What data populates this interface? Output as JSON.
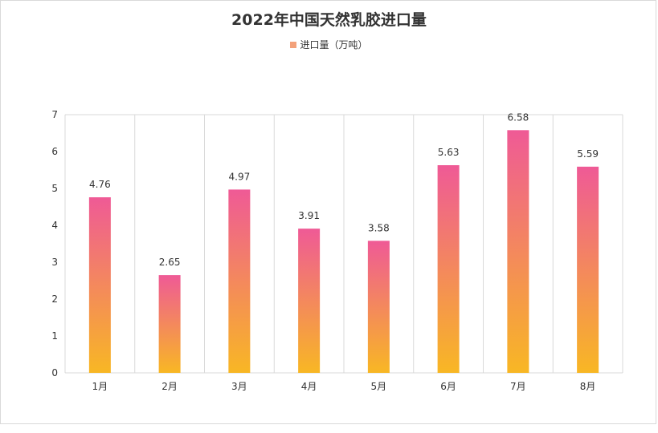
{
  "chart_data": {
    "type": "bar",
    "title": "2022年中国天然乳胶进口量",
    "xlabel": "",
    "ylabel": "",
    "categories": [
      "1月",
      "2月",
      "3月",
      "4月",
      "5月",
      "6月",
      "7月",
      "8月"
    ],
    "series": [
      {
        "name": "进口量（万吨）",
        "values": [
          4.76,
          2.65,
          4.97,
          3.91,
          3.58,
          5.63,
          6.58,
          5.59
        ]
      }
    ],
    "ylim": [
      0,
      7
    ],
    "yticks": [
      0,
      1,
      2,
      3,
      4,
      5,
      6,
      7
    ],
    "grid": "vertical",
    "legend_position": "top-center",
    "colors": {
      "bar_top": "#ef5a96",
      "bar_bottom": "#f8b724",
      "legend": "#f3a17a"
    }
  }
}
